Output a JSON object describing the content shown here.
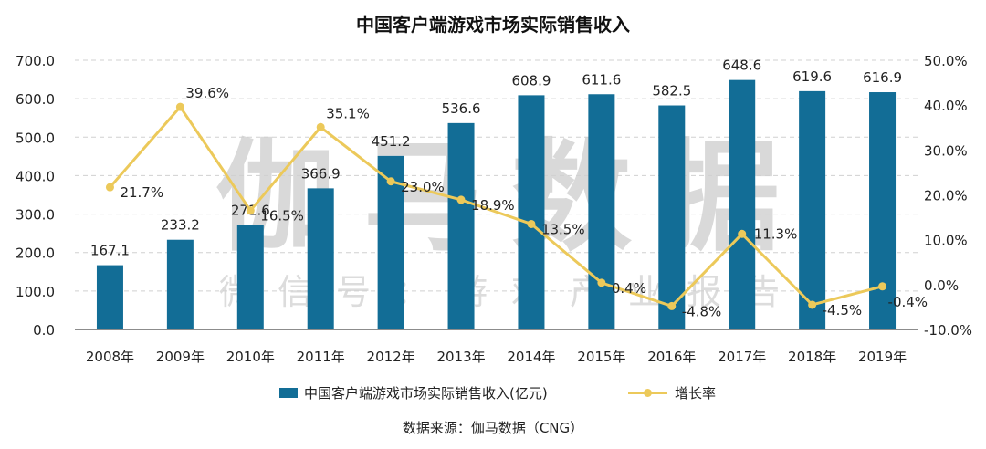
{
  "chart_data": {
    "type": "bar",
    "title": "中国客户端游戏市场实际销售收入",
    "categories": [
      "2008年",
      "2009年",
      "2010年",
      "2011年",
      "2012年",
      "2013年",
      "2014年",
      "2015年",
      "2016年",
      "2017年",
      "2018年",
      "2019年"
    ],
    "series": [
      {
        "name": "中国客户端游戏市场实际销售收入(亿元)",
        "type": "bar",
        "axis": "left",
        "values": [
          167.1,
          233.2,
          271.6,
          366.9,
          451.2,
          536.6,
          608.9,
          611.6,
          582.5,
          648.6,
          619.6,
          616.9
        ],
        "labels": [
          "167.1",
          "233.2",
          "271.6",
          "366.9",
          "451.2",
          "536.6",
          "608.9",
          "611.6",
          "582.5",
          "648.6",
          "619.6",
          "616.9"
        ]
      },
      {
        "name": "增长率",
        "type": "line",
        "axis": "right",
        "values": [
          21.7,
          39.6,
          16.5,
          35.1,
          23.0,
          18.9,
          13.5,
          0.4,
          -4.8,
          11.3,
          -4.5,
          -0.4
        ],
        "labels": [
          "21.7%",
          "39.6%",
          "16.5%",
          "35.1%",
          "23.0%",
          "18.9%",
          "13.5%",
          "0.4%",
          "-4.8%",
          "11.3%",
          "-4.5%",
          "-0.4%"
        ]
      }
    ],
    "y_left": {
      "min": 0,
      "max": 700,
      "step": 100,
      "tick_labels": [
        "0.0",
        "100.0",
        "200.0",
        "300.0",
        "400.0",
        "500.0",
        "600.0",
        "700.0"
      ]
    },
    "y_right": {
      "min": -10,
      "max": 50,
      "step": 10,
      "tick_labels": [
        "-10.0%",
        "0.0%",
        "10.0%",
        "20.0%",
        "30.0%",
        "40.0%",
        "50.0%"
      ]
    },
    "grid": true,
    "legend_position": "bottom",
    "colors": {
      "bar": "#126d96",
      "line": "#ecc95a",
      "grid": "#d0d0d0"
    }
  },
  "watermark": {
    "main": "伽马数据",
    "sub": "微信号：游戏产业报告"
  },
  "source": "数据来源：伽马数据（CNG）"
}
